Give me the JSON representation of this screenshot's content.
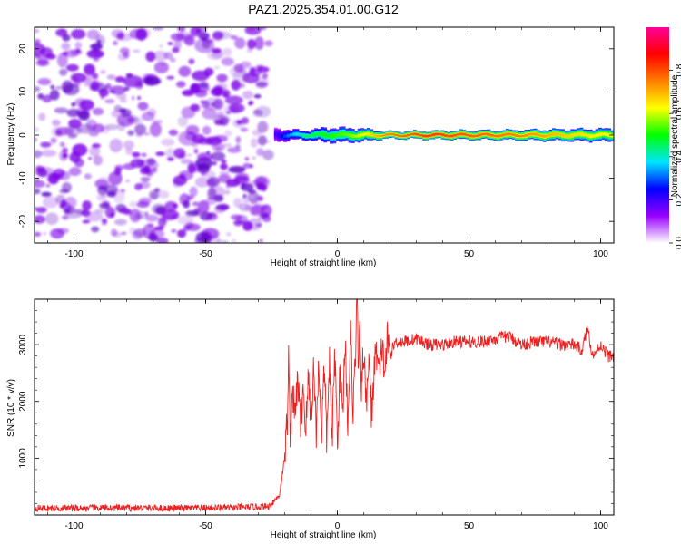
{
  "title": "PAZ1.2025.354.01.00.G12",
  "chart_data": [
    {
      "type": "heatmap",
      "xlabel": "Height of straight line (km)",
      "ylabel": "Frequency (Hz)",
      "xlim": [
        -115,
        105
      ],
      "ylim": [
        -25,
        25
      ],
      "xticks": [
        -100,
        -50,
        0,
        50,
        100
      ],
      "yticks": [
        -20,
        -10,
        0,
        10,
        20
      ],
      "noise_region": {
        "x_range": [
          -115,
          -26
        ],
        "color": "#7a00e6"
      },
      "signal_band": [
        {
          "x": -24,
          "halfwidth_hz": 1.5,
          "amplitude": 0.15
        },
        {
          "x": -18,
          "halfwidth_hz": 1.2,
          "amplitude": 0.35
        },
        {
          "x": -12,
          "halfwidth_hz": 1.0,
          "amplitude": 0.5
        },
        {
          "x": -5,
          "halfwidth_hz": 1.6,
          "amplitude": 0.55
        },
        {
          "x": 3,
          "halfwidth_hz": 1.6,
          "amplitude": 0.6
        },
        {
          "x": 10,
          "halfwidth_hz": 1.4,
          "amplitude": 0.7
        },
        {
          "x": 18,
          "halfwidth_hz": 0.8,
          "amplitude": 0.85
        },
        {
          "x": 35,
          "halfwidth_hz": 0.9,
          "amplitude": 0.95
        },
        {
          "x": 50,
          "halfwidth_hz": 1.0,
          "amplitude": 0.9
        },
        {
          "x": 70,
          "halfwidth_hz": 1.1,
          "amplitude": 0.85
        },
        {
          "x": 90,
          "halfwidth_hz": 1.3,
          "amplitude": 0.75
        },
        {
          "x": 105,
          "halfwidth_hz": 1.4,
          "amplitude": 0.7
        }
      ],
      "colorbar": {
        "label": "Normalized spectral amplitude",
        "range": [
          0,
          1
        ],
        "ticks": [
          0.0,
          0.2,
          0.4,
          0.6,
          0.8
        ],
        "tick_labels": [
          "0.0",
          "0.2",
          "0.4",
          "0.6",
          "0.8"
        ],
        "colors": [
          "#ffffff",
          "#9a00ff",
          "#0000ff",
          "#00e5ff",
          "#00ff00",
          "#ffff00",
          "#ff7f00",
          "#ff0000",
          "#ff0099"
        ]
      }
    },
    {
      "type": "line",
      "xlabel": "Height of straight line (km)",
      "ylabel": "SNR (10 * v/v)",
      "xlim": [
        -115,
        105
      ],
      "ylim": [
        0,
        3800
      ],
      "xticks": [
        -100,
        -50,
        0,
        50,
        100
      ],
      "yticks": [
        1000,
        2000,
        3000
      ],
      "color": "#ee2020",
      "series": [
        {
          "name": "SNR",
          "x": [
            -115,
            -100,
            -80,
            -60,
            -40,
            -26,
            -22,
            -20,
            -19,
            -18.5,
            -18,
            -17,
            -16,
            -15,
            -14,
            -13,
            -12,
            -11,
            -10,
            -9,
            -8,
            -7,
            -6,
            -5,
            -4,
            -3,
            -2,
            -1,
            0,
            1,
            2,
            3,
            4,
            5,
            6,
            7,
            7.5,
            8,
            8.5,
            9,
            10,
            11,
            12,
            13,
            14,
            15,
            16,
            17,
            18,
            19,
            20,
            22,
            25,
            30,
            35,
            40,
            45,
            50,
            55,
            60,
            65,
            70,
            75,
            80,
            85,
            90,
            93,
            95,
            97,
            100,
            103,
            105
          ],
          "y": [
            120,
            120,
            125,
            120,
            130,
            150,
            350,
            1000,
            1700,
            2820,
            1400,
            2200,
            1700,
            2500,
            1500,
            2300,
            1500,
            2400,
            1700,
            2600,
            1500,
            2700,
            1400,
            2600,
            1300,
            2800,
            1200,
            2900,
            1300,
            2500,
            1800,
            3100,
            1600,
            3200,
            1900,
            3000,
            3800,
            2600,
            3300,
            2000,
            3000,
            1800,
            2900,
            1700,
            2600,
            2900,
            2400,
            3000,
            2500,
            3100,
            2800,
            3050,
            3050,
            3100,
            3000,
            3000,
            3050,
            3050,
            3050,
            3100,
            3150,
            3000,
            3050,
            3050,
            3000,
            3000,
            2900,
            3300,
            2800,
            3000,
            2800,
            2800
          ]
        }
      ]
    }
  ]
}
